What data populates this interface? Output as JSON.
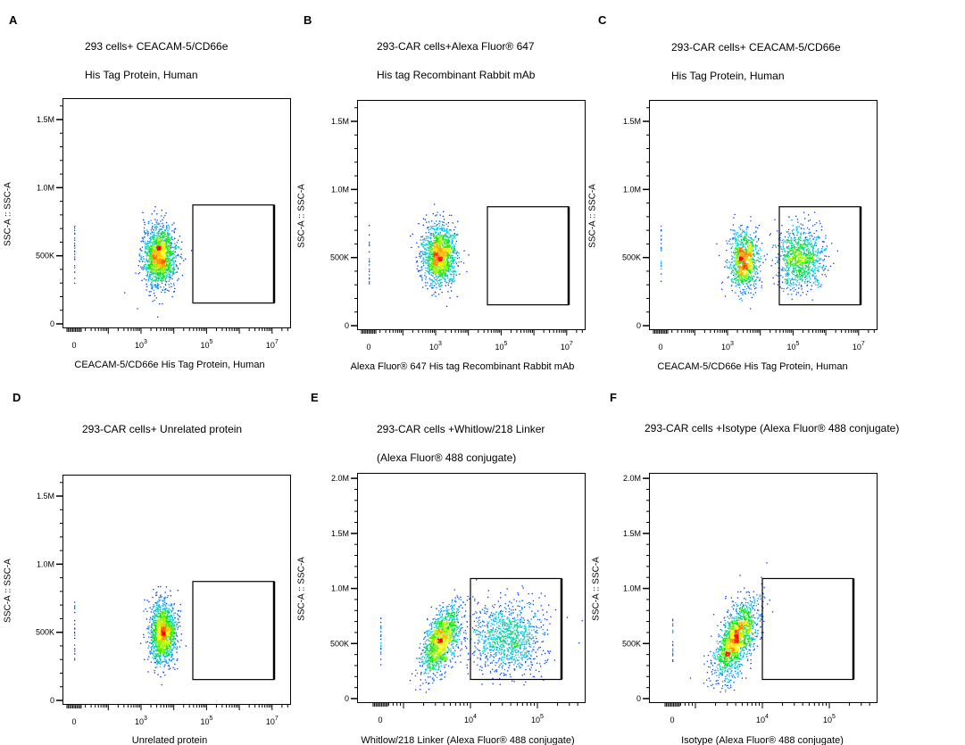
{
  "panels": [
    {
      "letter": "A",
      "title": [
        "293 cells+ CEACAM-5/CD66e",
        "His Tag Protein, Human"
      ],
      "xlabel": "CEACAM-5/CD66e His Tag Protein, Human",
      "ylabel": "SSC-A :: SSC-A",
      "x_scale": "biexponential",
      "xticks": [
        {
          "v": 0,
          "base": "0",
          "exp": ""
        },
        {
          "v": 3,
          "base": "10",
          "exp": "3"
        },
        {
          "v": 5,
          "base": "10",
          "exp": "5"
        },
        {
          "v": 7,
          "base": "10",
          "exp": "7"
        }
      ],
      "ylim": [
        0,
        1690000
      ],
      "yticks": [
        {
          "v": 0,
          "label": "0"
        },
        {
          "v": 500000,
          "label": "500K"
        },
        {
          "v": 1000000,
          "label": "1.0M"
        },
        {
          "v": 1500000,
          "label": "1.5M"
        }
      ],
      "gate": {
        "x_log10": [
          4.58,
          7.06
        ],
        "y": [
          153000,
          873000
        ]
      },
      "populations": [
        {
          "x_log10": 3.55,
          "sx": 0.25,
          "y": 500000,
          "sy": 110000,
          "n": 1600,
          "tilt": 0
        }
      ]
    },
    {
      "letter": "B",
      "title": [
        "293-CAR cells+Alexa Fluor® 647",
        "His tag Recombinant Rabbit mAb"
      ],
      "xlabel": "Alexa Fluor® 647  His tag Recombinant Rabbit mAb",
      "ylabel": "SSC-A :: SSC-A",
      "x_scale": "biexponential",
      "xticks": [
        {
          "v": 0,
          "base": "0",
          "exp": ""
        },
        {
          "v": 3,
          "base": "10",
          "exp": "3"
        },
        {
          "v": 5,
          "base": "10",
          "exp": "5"
        },
        {
          "v": 7,
          "base": "10",
          "exp": "7"
        }
      ],
      "ylim": [
        0,
        1690000
      ],
      "yticks": [
        {
          "v": 0,
          "label": "0"
        },
        {
          "v": 500000,
          "label": "500K"
        },
        {
          "v": 1000000,
          "label": "1.0M"
        },
        {
          "v": 1500000,
          "label": "1.5M"
        }
      ],
      "gate": {
        "x_log10": [
          4.58,
          7.06
        ],
        "y": [
          153000,
          873000
        ]
      },
      "populations": [
        {
          "x_log10": 3.1,
          "sx": 0.25,
          "y": 520000,
          "sy": 110000,
          "n": 1500,
          "tilt": 0
        }
      ]
    },
    {
      "letter": "C",
      "title": [
        "293-CAR cells+ CEACAM-5/CD66e",
        "His Tag Protein, Human"
      ],
      "xlabel": "CEACAM-5/CD66e His Tag Protein, Human",
      "ylabel": "SSC-A :: SSC-A",
      "x_scale": "biexponential",
      "xticks": [
        {
          "v": 0,
          "base": "0",
          "exp": ""
        },
        {
          "v": 3,
          "base": "10",
          "exp": "3"
        },
        {
          "v": 5,
          "base": "10",
          "exp": "5"
        },
        {
          "v": 7,
          "base": "10",
          "exp": "7"
        }
      ],
      "ylim": [
        0,
        1690000
      ],
      "yticks": [
        {
          "v": 0,
          "label": "0"
        },
        {
          "v": 500000,
          "label": "500K"
        },
        {
          "v": 1000000,
          "label": "1.0M"
        },
        {
          "v": 1500000,
          "label": "1.5M"
        }
      ],
      "gate": {
        "x_log10": [
          4.58,
          7.06
        ],
        "y": [
          153000,
          873000
        ]
      },
      "populations": [
        {
          "x_log10": 3.5,
          "sx": 0.22,
          "y": 480000,
          "sy": 110000,
          "n": 1000,
          "tilt": 0
        },
        {
          "x_log10": 5.2,
          "sx": 0.35,
          "y": 500000,
          "sy": 110000,
          "n": 1000,
          "tilt": 0
        }
      ]
    },
    {
      "letter": "D",
      "title": [
        "293-CAR cells+ Unrelated protein"
      ],
      "xlabel": "Unrelated protein",
      "ylabel": "SSC-A :: SSC-A",
      "x_scale": "biexponential",
      "xticks": [
        {
          "v": 0,
          "base": "0",
          "exp": ""
        },
        {
          "v": 3,
          "base": "10",
          "exp": "3"
        },
        {
          "v": 5,
          "base": "10",
          "exp": "5"
        },
        {
          "v": 7,
          "base": "10",
          "exp": "7"
        }
      ],
      "ylim": [
        0,
        1690000
      ],
      "yticks": [
        {
          "v": 0,
          "label": "0"
        },
        {
          "v": 500000,
          "label": "500K"
        },
        {
          "v": 1000000,
          "label": "1.0M"
        },
        {
          "v": 1500000,
          "label": "1.5M"
        }
      ],
      "gate": {
        "x_log10": [
          4.58,
          7.06
        ],
        "y": [
          153000,
          873000
        ]
      },
      "populations": [
        {
          "x_log10": 3.65,
          "sx": 0.2,
          "y": 500000,
          "sy": 110000,
          "n": 1500,
          "tilt": 0
        }
      ]
    },
    {
      "letter": "E",
      "title": [
        "293-CAR cells +Whitlow/218 Linker",
        "(Alexa Fluor® 488 conjugate)"
      ],
      "xlabel": "Whitlow/218 Linker (Alexa Fluor® 488 conjugate)",
      "ylabel": "SSC-A :: SSC-A",
      "x_scale": "biexponential",
      "xticks": [
        {
          "v": 0,
          "base": "0",
          "exp": ""
        },
        {
          "v": 4,
          "base": "10",
          "exp": "4"
        },
        {
          "v": 5,
          "base": "10",
          "exp": "5"
        }
      ],
      "ylim": [
        0,
        2090000
      ],
      "yticks": [
        {
          "v": 0,
          "label": "0"
        },
        {
          "v": 500000,
          "label": "500K"
        },
        {
          "v": 1000000,
          "label": "1.0M"
        },
        {
          "v": 1500000,
          "label": "1.5M"
        },
        {
          "v": 2000000,
          "label": "2.0M"
        }
      ],
      "gate": {
        "x_log10": [
          4.0,
          5.36
        ],
        "y": [
          174000,
          1090000
        ]
      },
      "populations": [
        {
          "x_log10": 3.55,
          "sx": 0.14,
          "y": 520000,
          "sy": 130000,
          "n": 1300,
          "tilt": 1.4
        },
        {
          "x_log10": 4.55,
          "sx": 0.28,
          "y": 560000,
          "sy": 170000,
          "n": 1100,
          "tilt": 0
        }
      ]
    },
    {
      "letter": "F",
      "title": [
        "293-CAR cells +Isotype (Alexa Fluor® 488 conjugate)"
      ],
      "xlabel": "Isotype (Alexa Fluor® 488 conjugate)",
      "ylabel": "SSC-A :: SSC-A",
      "x_scale": "biexponential",
      "xticks": [
        {
          "v": 0,
          "base": "0",
          "exp": ""
        },
        {
          "v": 4,
          "base": "10",
          "exp": "4"
        },
        {
          "v": 5,
          "base": "10",
          "exp": "5"
        }
      ],
      "ylim": [
        0,
        2090000
      ],
      "yticks": [
        {
          "v": 0,
          "label": "0"
        },
        {
          "v": 500000,
          "label": "500K"
        },
        {
          "v": 1000000,
          "label": "1.0M"
        },
        {
          "v": 1500000,
          "label": "1.5M"
        },
        {
          "v": 2000000,
          "label": "2.0M"
        }
      ],
      "gate": {
        "x_log10": [
          4.0,
          5.36
        ],
        "y": [
          174000,
          1090000
        ]
      },
      "populations": [
        {
          "x_log10": 3.6,
          "sx": 0.16,
          "y": 540000,
          "sy": 140000,
          "n": 1600,
          "tilt": 1.5
        }
      ]
    }
  ],
  "chart_data": {
    "type": "scatter",
    "xlabel": "",
    "ylabel": "SSC-A :: SSC-A",
    "note_colors": [
      "#0000ff",
      "#00c8ff",
      "#00ff00",
      "#ffff00",
      "#ff0000"
    ]
  }
}
